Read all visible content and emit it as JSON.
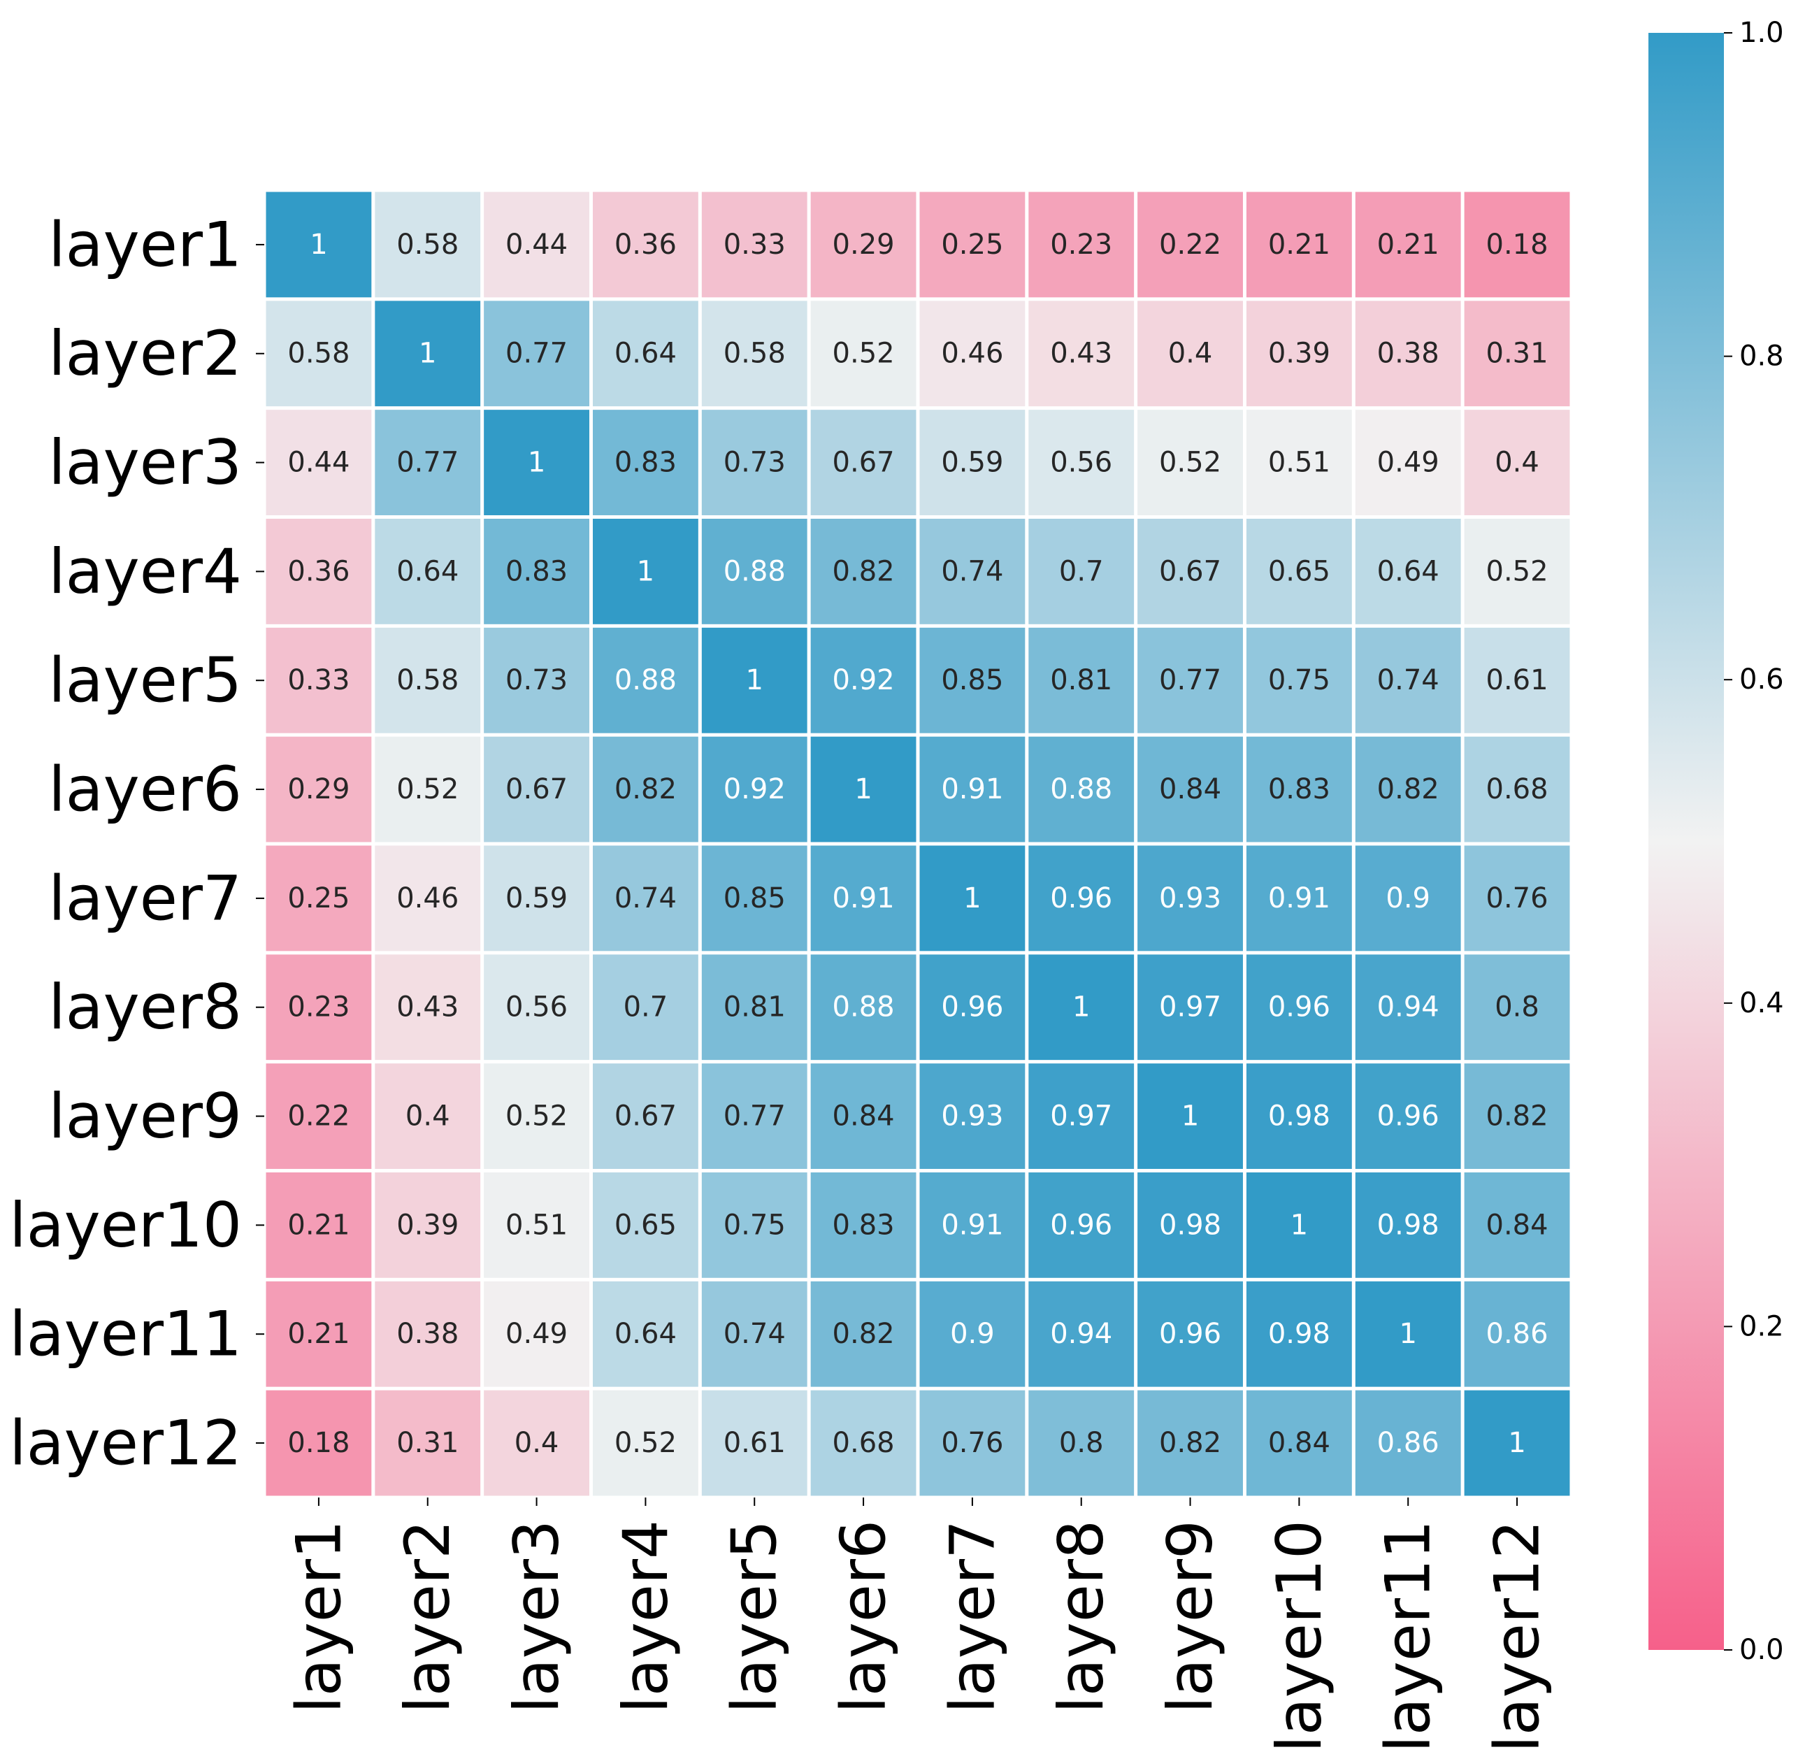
{
  "chart_data": {
    "type": "heatmap",
    "title": "",
    "xlabel": "",
    "ylabel": "",
    "row_labels": [
      "layer1",
      "layer2",
      "layer3",
      "layer4",
      "layer5",
      "layer6",
      "layer7",
      "layer8",
      "layer9",
      "layer10",
      "layer11",
      "layer12"
    ],
    "col_labels": [
      "layer1",
      "layer2",
      "layer3",
      "layer4",
      "layer5",
      "layer6",
      "layer7",
      "layer8",
      "layer9",
      "layer10",
      "layer11",
      "layer12"
    ],
    "values": [
      [
        1,
        0.58,
        0.44,
        0.36,
        0.33,
        0.29,
        0.25,
        0.23,
        0.22,
        0.21,
        0.21,
        0.18
      ],
      [
        0.58,
        1,
        0.77,
        0.64,
        0.58,
        0.52,
        0.46,
        0.43,
        0.4,
        0.39,
        0.38,
        0.31
      ],
      [
        0.44,
        0.77,
        1,
        0.83,
        0.73,
        0.67,
        0.59,
        0.56,
        0.52,
        0.51,
        0.49,
        0.4
      ],
      [
        0.36,
        0.64,
        0.83,
        1,
        0.88,
        0.82,
        0.74,
        0.7,
        0.67,
        0.65,
        0.64,
        0.52
      ],
      [
        0.33,
        0.58,
        0.73,
        0.88,
        1,
        0.92,
        0.85,
        0.81,
        0.77,
        0.75,
        0.74,
        0.61
      ],
      [
        0.29,
        0.52,
        0.67,
        0.82,
        0.92,
        1,
        0.91,
        0.88,
        0.84,
        0.83,
        0.82,
        0.68
      ],
      [
        0.25,
        0.46,
        0.59,
        0.74,
        0.85,
        0.91,
        1,
        0.96,
        0.93,
        0.91,
        0.9,
        0.76
      ],
      [
        0.23,
        0.43,
        0.56,
        0.7,
        0.81,
        0.88,
        0.96,
        1,
        0.97,
        0.96,
        0.94,
        0.8
      ],
      [
        0.22,
        0.4,
        0.52,
        0.67,
        0.77,
        0.84,
        0.93,
        0.97,
        1,
        0.98,
        0.96,
        0.82
      ],
      [
        0.21,
        0.39,
        0.51,
        0.65,
        0.75,
        0.83,
        0.91,
        0.96,
        0.98,
        1,
        0.98,
        0.84
      ],
      [
        0.21,
        0.38,
        0.49,
        0.64,
        0.74,
        0.82,
        0.9,
        0.94,
        0.96,
        0.98,
        1,
        0.86
      ],
      [
        0.18,
        0.31,
        0.4,
        0.52,
        0.61,
        0.68,
        0.76,
        0.8,
        0.82,
        0.84,
        0.86,
        1
      ]
    ],
    "value_labels": [
      [
        "1",
        "0.58",
        "0.44",
        "0.36",
        "0.33",
        "0.29",
        "0.25",
        "0.23",
        "0.22",
        "0.21",
        "0.21",
        "0.18"
      ],
      [
        "0.58",
        "1",
        "0.77",
        "0.64",
        "0.58",
        "0.52",
        "0.46",
        "0.43",
        "0.4",
        "0.39",
        "0.38",
        "0.31"
      ],
      [
        "0.44",
        "0.77",
        "1",
        "0.83",
        "0.73",
        "0.67",
        "0.59",
        "0.56",
        "0.52",
        "0.51",
        "0.49",
        "0.4"
      ],
      [
        "0.36",
        "0.64",
        "0.83",
        "1",
        "0.88",
        "0.82",
        "0.74",
        "0.7",
        "0.67",
        "0.65",
        "0.64",
        "0.52"
      ],
      [
        "0.33",
        "0.58",
        "0.73",
        "0.88",
        "1",
        "0.92",
        "0.85",
        "0.81",
        "0.77",
        "0.75",
        "0.74",
        "0.61"
      ],
      [
        "0.29",
        "0.52",
        "0.67",
        "0.82",
        "0.92",
        "1",
        "0.91",
        "0.88",
        "0.84",
        "0.83",
        "0.82",
        "0.68"
      ],
      [
        "0.25",
        "0.46",
        "0.59",
        "0.74",
        "0.85",
        "0.91",
        "1",
        "0.96",
        "0.93",
        "0.91",
        "0.9",
        "0.76"
      ],
      [
        "0.23",
        "0.43",
        "0.56",
        "0.7",
        "0.81",
        "0.88",
        "0.96",
        "1",
        "0.97",
        "0.96",
        "0.94",
        "0.8"
      ],
      [
        "0.22",
        "0.4",
        "0.52",
        "0.67",
        "0.77",
        "0.84",
        "0.93",
        "0.97",
        "1",
        "0.98",
        "0.96",
        "0.82"
      ],
      [
        "0.21",
        "0.39",
        "0.51",
        "0.65",
        "0.75",
        "0.83",
        "0.91",
        "0.96",
        "0.98",
        "1",
        "0.98",
        "0.84"
      ],
      [
        "0.21",
        "0.38",
        "0.49",
        "0.64",
        "0.74",
        "0.82",
        "0.9",
        "0.94",
        "0.96",
        "0.98",
        "1",
        "0.86"
      ],
      [
        "0.18",
        "0.31",
        "0.4",
        "0.52",
        "0.61",
        "0.68",
        "0.76",
        "0.8",
        "0.82",
        "0.84",
        "0.86",
        "1"
      ]
    ],
    "vmin": 0,
    "vmax": 1,
    "colormap": {
      "low": "#f6608a",
      "mid": "#f2f2f2",
      "high": "#329bc7"
    },
    "colorbar": {
      "position": "right",
      "ticks": [
        0.0,
        0.2,
        0.4,
        0.6,
        0.8,
        1.0
      ],
      "tick_labels": [
        "0.0",
        "0.2",
        "0.4",
        "0.6",
        "0.8",
        "1.0"
      ]
    },
    "text_colors": {
      "dark": "#262626",
      "light": "#ffffff"
    },
    "grid_line_color": "#ffffff",
    "legend": "none"
  }
}
